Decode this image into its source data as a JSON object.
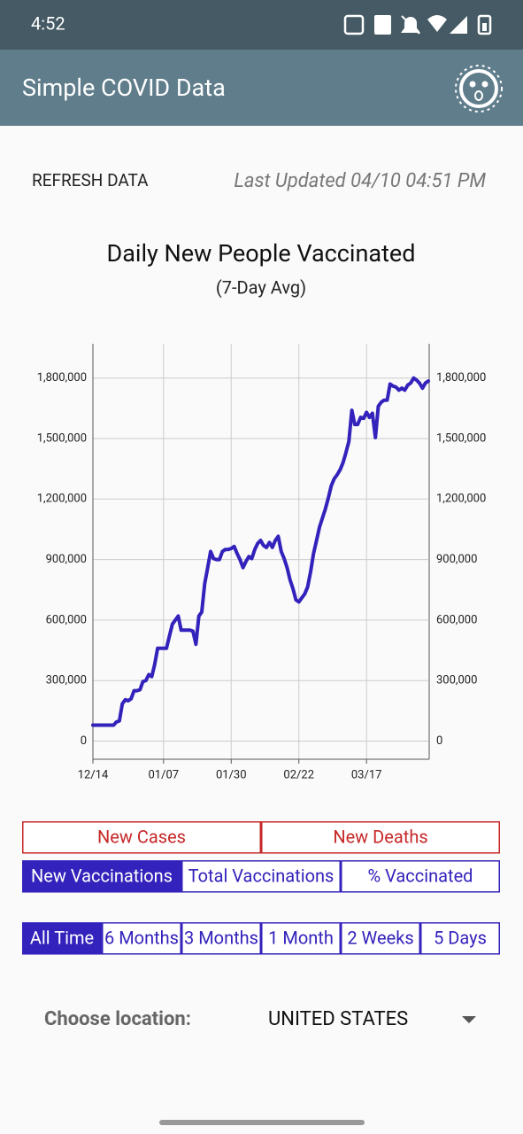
{
  "status_bar": {
    "time": "4:52"
  },
  "app_bar": {
    "title": "Simple COVID Data"
  },
  "refresh": {
    "button": "REFRESH DATA",
    "last_updated": "Last Updated 04/10 04:51 PM"
  },
  "chart_data": {
    "type": "line",
    "title": "Daily New People Vaccinated",
    "subtitle": "(7-Day Avg)",
    "categories": [
      "12/14",
      null,
      null,
      null,
      null,
      null,
      null,
      null,
      null,
      null,
      null,
      null,
      null,
      null,
      null,
      null,
      null,
      null,
      null,
      null,
      null,
      null,
      null,
      null,
      "01/07",
      null,
      null,
      null,
      null,
      null,
      null,
      null,
      null,
      null,
      null,
      null,
      null,
      null,
      null,
      null,
      null,
      null,
      null,
      null,
      null,
      null,
      null,
      "01/30",
      null,
      null,
      null,
      null,
      null,
      null,
      null,
      null,
      null,
      null,
      null,
      null,
      null,
      null,
      null,
      null,
      null,
      null,
      null,
      null,
      null,
      null,
      "02/22",
      null,
      null,
      null,
      null,
      null,
      null,
      null,
      null,
      null,
      null,
      null,
      null,
      null,
      null,
      null,
      null,
      null,
      null,
      null,
      null,
      null,
      null,
      "03/17",
      null,
      null,
      null,
      null,
      null,
      null,
      null,
      null,
      null,
      null,
      null,
      null,
      null,
      null,
      null,
      null,
      null,
      null,
      null,
      null,
      null
    ],
    "values": [
      79000,
      79000,
      79000,
      79000,
      79000,
      79000,
      79000,
      79000,
      95000,
      100000,
      185000,
      205000,
      200000,
      210000,
      250000,
      250000,
      255000,
      295000,
      300000,
      330000,
      320000,
      380000,
      460000,
      460000,
      460000,
      460000,
      520000,
      580000,
      600000,
      620000,
      550000,
      550000,
      550000,
      550000,
      545000,
      480000,
      620000,
      640000,
      780000,
      860000,
      940000,
      905000,
      900000,
      900000,
      940000,
      950000,
      950000,
      955000,
      965000,
      930000,
      900000,
      860000,
      890000,
      915000,
      905000,
      950000,
      980000,
      995000,
      970000,
      960000,
      985000,
      960000,
      995000,
      1015000,
      940000,
      905000,
      860000,
      800000,
      755000,
      700000,
      690000,
      710000,
      730000,
      765000,
      840000,
      930000,
      995000,
      1060000,
      1105000,
      1150000,
      1205000,
      1265000,
      1300000,
      1320000,
      1345000,
      1380000,
      1430000,
      1485000,
      1640000,
      1570000,
      1570000,
      1605000,
      1600000,
      1630000,
      1605000,
      1625000,
      1505000,
      1660000,
      1680000,
      1690000,
      1690000,
      1770000,
      1760000,
      1755000,
      1740000,
      1750000,
      1740000,
      1765000,
      1775000,
      1800000,
      1790000,
      1775000,
      1750000,
      1775000,
      1785000
    ],
    "color": "#3322bb",
    "ylim": [
      -90000,
      1970000
    ],
    "yticks": [
      0,
      {
        "value": 300000,
        "label": "300,000"
      },
      {
        "value": 600000,
        "label": "600,000"
      },
      {
        "value": 900000,
        "label": "900,000"
      },
      {
        "value": 1200000,
        "label": "1,200,000"
      },
      {
        "value": 1500000,
        "label": "1,500,000"
      },
      {
        "value": 1800000,
        "label": "1,800,000"
      }
    ],
    "y2lim": [
      -90000,
      1970000
    ],
    "y2ticks": [
      0,
      {
        "value": 300000,
        "label": "300,000"
      },
      {
        "value": 600000,
        "label": "600,000"
      },
      {
        "value": 900000,
        "label": "900,000"
      },
      {
        "value": 1200000,
        "label": "1,200,000"
      },
      {
        "value": 1500000,
        "label": "1,500,000"
      },
      {
        "value": 1800000,
        "label": "1,800,000"
      }
    ],
    "grid": true
  },
  "button_rows": [
    [
      {
        "label": "New Cases",
        "color": "#c62828",
        "selected": false
      },
      {
        "label": "New Deaths",
        "color": "#c62828",
        "selected": false
      }
    ],
    [
      {
        "label": "New Vaccinations",
        "color": "#3322bb",
        "selected": true
      },
      {
        "label": "Total Vaccinations",
        "color": "#3322bb",
        "selected": false
      },
      {
        "label": "% Vaccinated",
        "color": "#3322bb",
        "selected": false
      }
    ],
    [
      {
        "label": "All Time",
        "color": "#3322bb",
        "selected": true
      },
      {
        "label": "6 Months",
        "color": "#3322bb",
        "selected": false
      },
      {
        "label": "3 Months",
        "color": "#3322bb",
        "selected": false
      },
      {
        "label": "1 Month",
        "color": "#3322bb",
        "selected": false
      },
      {
        "label": "2 Weeks",
        "color": "#3322bb",
        "selected": false
      },
      {
        "label": "5 Days",
        "color": "#3322bb",
        "selected": false
      }
    ]
  ],
  "location": {
    "label": "Choose location:",
    "value": "UNITED STATES"
  }
}
